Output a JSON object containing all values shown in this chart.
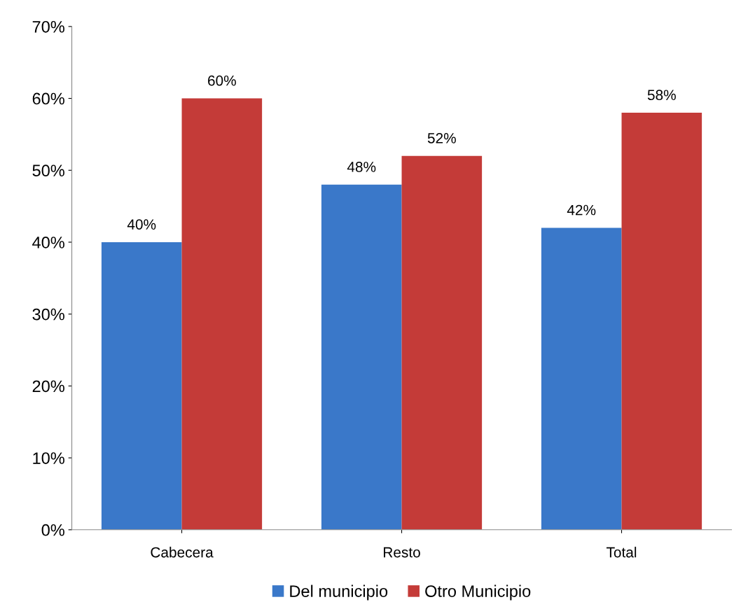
{
  "chart_data": {
    "type": "bar",
    "categories": [
      "Cabecera",
      "Resto",
      "Total"
    ],
    "series": [
      {
        "name": "Del municipio",
        "color": "#3a78c9",
        "values": [
          40,
          48,
          42
        ],
        "value_labels": [
          "40%",
          "48%",
          "42%"
        ]
      },
      {
        "name": "Otro Municipio",
        "color": "#c43b38",
        "values": [
          60,
          52,
          58
        ],
        "value_labels": [
          "60%",
          "52%",
          "58%"
        ]
      }
    ],
    "ylim": [
      0,
      70
    ],
    "yticks": [
      {
        "value": 0,
        "label": "0%"
      },
      {
        "value": 10,
        "label": "10%"
      },
      {
        "value": 20,
        "label": "20%"
      },
      {
        "value": 30,
        "label": "30%"
      },
      {
        "value": 40,
        "label": "40%"
      },
      {
        "value": 50,
        "label": "50%"
      },
      {
        "value": 60,
        "label": "60%"
      },
      {
        "value": 70,
        "label": "70%"
      }
    ],
    "grid": false,
    "legend": "bottom"
  }
}
